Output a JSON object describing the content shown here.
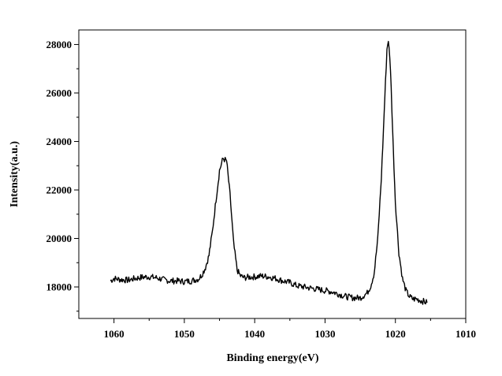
{
  "chart_data": {
    "type": "line",
    "title": "",
    "xlabel": "Binding energy(eV)",
    "ylabel": "Intensity(a.u.)",
    "x_reversed": true,
    "xlim": [
      1065,
      1010
    ],
    "ylim": [
      16700,
      28600
    ],
    "x_ticks": [
      1060,
      1050,
      1040,
      1030,
      1020,
      1010
    ],
    "y_ticks": [
      18000,
      20000,
      22000,
      24000,
      26000,
      28000
    ],
    "x_tick_labels": [
      "1060",
      "1050",
      "1040",
      "1030",
      "1020",
      "1010"
    ],
    "y_tick_labels": [
      "18000",
      "20000",
      "22000",
      "24000",
      "26000",
      "28000"
    ],
    "grid": false,
    "line_color": "#000000",
    "series": [
      {
        "name": "",
        "x": [
          1060.5,
          1060,
          1059,
          1058,
          1057,
          1056,
          1055,
          1054,
          1053,
          1052,
          1051,
          1050,
          1049,
          1048,
          1047.5,
          1047,
          1046.5,
          1046,
          1045.5,
          1045,
          1044.5,
          1044,
          1043.5,
          1043,
          1042.5,
          1042,
          1041.5,
          1041,
          1040,
          1039,
          1038,
          1037,
          1036,
          1035,
          1034,
          1033,
          1032,
          1031,
          1030,
          1029,
          1028,
          1027,
          1026,
          1025,
          1024,
          1023.5,
          1023,
          1022.5,
          1022,
          1021.5,
          1021.2,
          1021,
          1020.7,
          1020.4,
          1020,
          1019.5,
          1019,
          1018.5,
          1018,
          1017.5,
          1017,
          1016.5,
          1016,
          1015.5
        ],
        "y": [
          18250,
          18350,
          18300,
          18280,
          18350,
          18400,
          18420,
          18380,
          18300,
          18250,
          18250,
          18220,
          18250,
          18330,
          18500,
          18800,
          19300,
          20300,
          21600,
          22800,
          23300,
          23200,
          21800,
          19800,
          18700,
          18450,
          18380,
          18400,
          18420,
          18450,
          18420,
          18350,
          18250,
          18180,
          18050,
          18000,
          17950,
          17900,
          17850,
          17800,
          17700,
          17600,
          17550,
          17550,
          17750,
          18050,
          18600,
          20000,
          22500,
          25800,
          27800,
          28200,
          27000,
          24500,
          21500,
          19400,
          18350,
          17850,
          17600,
          17500,
          17500,
          17450,
          17400,
          17350
        ]
      }
    ]
  }
}
